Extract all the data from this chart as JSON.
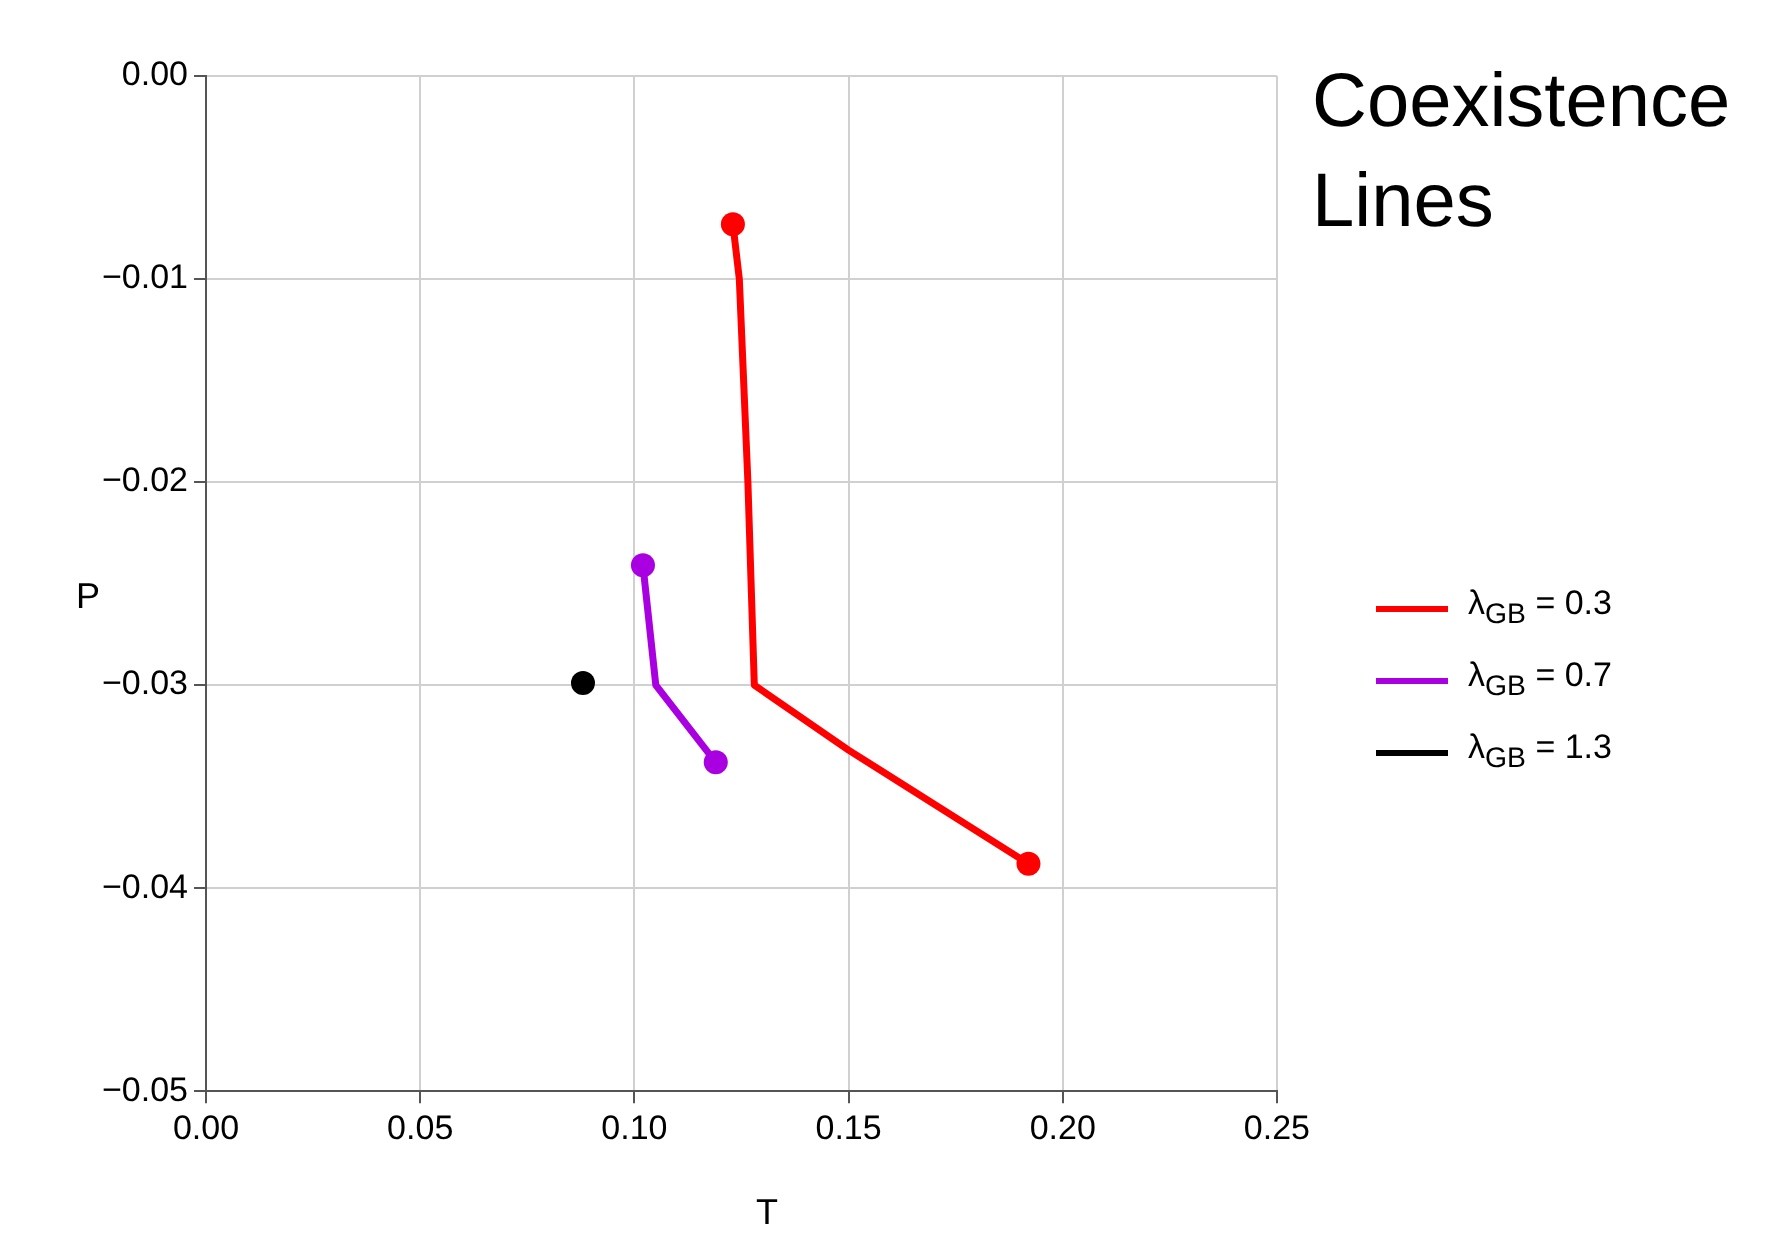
{
  "chart_data": {
    "type": "line",
    "title": "Coexistence Lines",
    "xlabel": "T",
    "ylabel": "P",
    "xlim": [
      0,
      0.25
    ],
    "xticks": [
      {
        "value": 0,
        "label": "0.00"
      },
      {
        "value": 0.05,
        "label": "0.05"
      },
      {
        "value": 0.1,
        "label": "0.10"
      },
      {
        "value": 0.15,
        "label": "0.15"
      },
      {
        "value": 0.2,
        "label": "0.20"
      },
      {
        "value": 0.25,
        "label": "0.25"
      }
    ],
    "ylim": [
      -0.05,
      0
    ],
    "yticks": [
      {
        "value": -0.05,
        "label": "−0.05"
      },
      {
        "value": -0.04,
        "label": "−0.04"
      },
      {
        "value": -0.03,
        "label": "−0.03"
      },
      {
        "value": -0.02,
        "label": "−0.02"
      },
      {
        "value": -0.01,
        "label": "−0.01"
      },
      {
        "value": 0,
        "label": "0.00"
      }
    ],
    "grid": true,
    "legend": "right",
    "marker": "none",
    "line_style": "solid",
    "series": [
      {
        "name": "λ$_{GB}$ = 0.3",
        "color": "#ff0000",
        "x": [
          0.123,
          0.1245,
          0.1265,
          0.128,
          0.15,
          0.192
        ],
        "values": [
          -0.0073,
          -0.01,
          -0.02,
          -0.03,
          -0.0332,
          -0.0388
        ]
      },
      {
        "name": "λ$_{GB}$ = 0.7",
        "color": "#a800e0",
        "x": [
          0.102,
          0.105,
          0.119
        ],
        "values": [
          -0.0241,
          -0.03,
          -0.0338
        ]
      },
      {
        "name": "λ$_{GB}$ = 1.3",
        "type": "scatter",
        "marker": "circle",
        "color": "#000000",
        "x": [
          0.088
        ],
        "values": [
          -0.0299
        ]
      },
      {
        "type": "scatter",
        "marker": "circle",
        "color": "#ff0000",
        "x": [
          0.123,
          0.192
        ],
        "values": [
          -0.0073,
          -0.0388
        ]
      },
      {
        "type": "scatter",
        "marker": "circle",
        "color": "#a800e0",
        "x": [
          0.102,
          0.119
        ],
        "values": [
          -0.0241,
          -0.0338
        ]
      }
    ]
  }
}
